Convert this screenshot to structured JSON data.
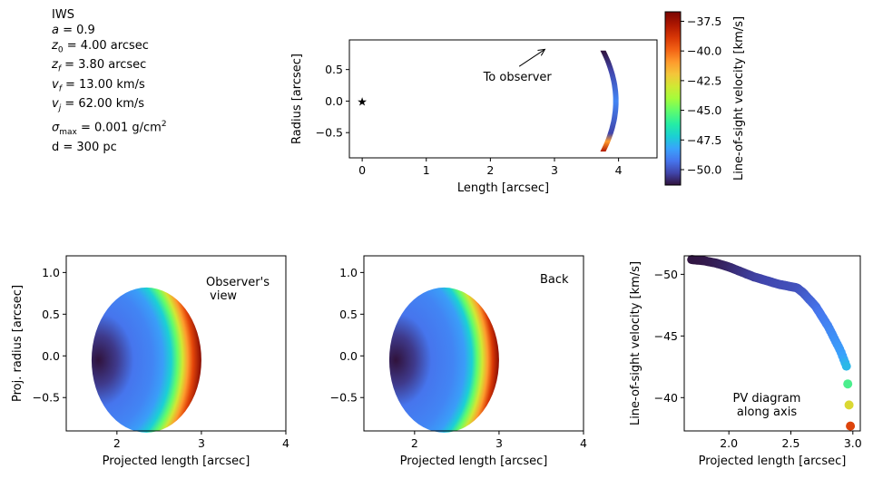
{
  "params": {
    "title": "IWS",
    "lines": [
      {
        "sym": "a",
        "sub": "",
        "text": " = 0.9"
      },
      {
        "sym": "z",
        "sub": "0",
        "text": " = 4.00 arcsec"
      },
      {
        "sym": "z",
        "sub": "f",
        "text": " = 3.80 arcsec"
      },
      {
        "sym": "v",
        "sub": "f",
        "text": " = 13.00 km/s"
      },
      {
        "sym": "v",
        "sub": "j",
        "text": " = 62.00 km/s"
      },
      {
        "sym": "σ",
        "sub": "max",
        "text": " = 0.001 g/cm",
        "sup": "2"
      },
      {
        "sym": "",
        "sub": "",
        "text": "d = 300 pc"
      }
    ]
  },
  "chart_data": [
    {
      "id": "side-view",
      "type": "scatter",
      "xlabel": "Length [arcsec]",
      "ylabel": "Radius [arcsec]",
      "xlim": [
        -0.2,
        4.6
      ],
      "ylim": [
        -0.9,
        0.97
      ],
      "xticks": [
        0,
        1,
        2,
        3,
        4
      ],
      "yticks": [
        -0.5,
        0.0,
        0.5
      ],
      "source_marker": {
        "x": 0,
        "y": 0,
        "marker": "star"
      },
      "annotation": {
        "text": "To observer",
        "arrow_from": [
          2.45,
          0.55
        ],
        "arrow_to": [
          2.85,
          0.82
        ]
      },
      "shell": {
        "z_edge": 3.8,
        "z_tip": 4.0,
        "r_max": 0.8
      }
    },
    {
      "id": "colorbar",
      "type": "colorbar",
      "label": "Line-of-sight velocity [km/s]",
      "range": [
        -51.3,
        -36.7
      ],
      "ticks": [
        -37.5,
        -40.0,
        -42.5,
        -45.0,
        -47.5,
        -50.0
      ],
      "colormap": "turbo"
    },
    {
      "id": "observers-view",
      "type": "heatmap",
      "annotation": "Observer's\n view",
      "xlabel": "Projected length [arcsec]",
      "ylabel": "Proj. radius [arcsec]",
      "xlim": [
        1.4,
        4.0
      ],
      "ylim": [
        -0.9,
        1.2
      ],
      "xticks": [
        2,
        3,
        4
      ],
      "yticks": [
        -0.5,
        0.0,
        0.5,
        1.0
      ],
      "ellipse": {
        "cx": 2.35,
        "cy": -0.05,
        "rx": 0.65,
        "ry": 0.87
      }
    },
    {
      "id": "back-view",
      "type": "heatmap",
      "annotation": "Back",
      "xlabel": "Projected length [arcsec]",
      "ylabel": "",
      "xlim": [
        1.4,
        4.0
      ],
      "ylim": [
        -0.9,
        1.2
      ],
      "xticks": [
        2,
        3,
        4
      ],
      "yticks": [
        -0.5,
        0.0,
        0.5,
        1.0
      ],
      "ellipse": {
        "cx": 2.35,
        "cy": -0.05,
        "rx": 0.65,
        "ry": 0.87
      }
    },
    {
      "id": "pv-diagram",
      "type": "line",
      "annotation": "PV diagram\nalong axis",
      "xlabel": "Projected length [arcsec]",
      "ylabel": "Line-of-sight velocity [km/s]",
      "xlim": [
        1.64,
        3.06
      ],
      "ylim": [
        -51.5,
        -37.3
      ],
      "invert_y": true,
      "xticks": [
        2.0,
        2.5,
        3.0
      ],
      "yticks": [
        -50,
        -45,
        -40
      ],
      "x": [
        1.7,
        1.8,
        1.9,
        2.0,
        2.1,
        2.2,
        2.3,
        2.4,
        2.45,
        2.5,
        2.55,
        2.6,
        2.7,
        2.8,
        2.9,
        2.95,
        2.98
      ],
      "y": [
        -51.2,
        -51.1,
        -50.9,
        -50.6,
        -50.2,
        -49.8,
        -49.5,
        -49.2,
        -49.1,
        -49.0,
        -48.9,
        -48.5,
        -47.4,
        -45.8,
        -43.8,
        -42.5,
        -37.7
      ]
    }
  ]
}
